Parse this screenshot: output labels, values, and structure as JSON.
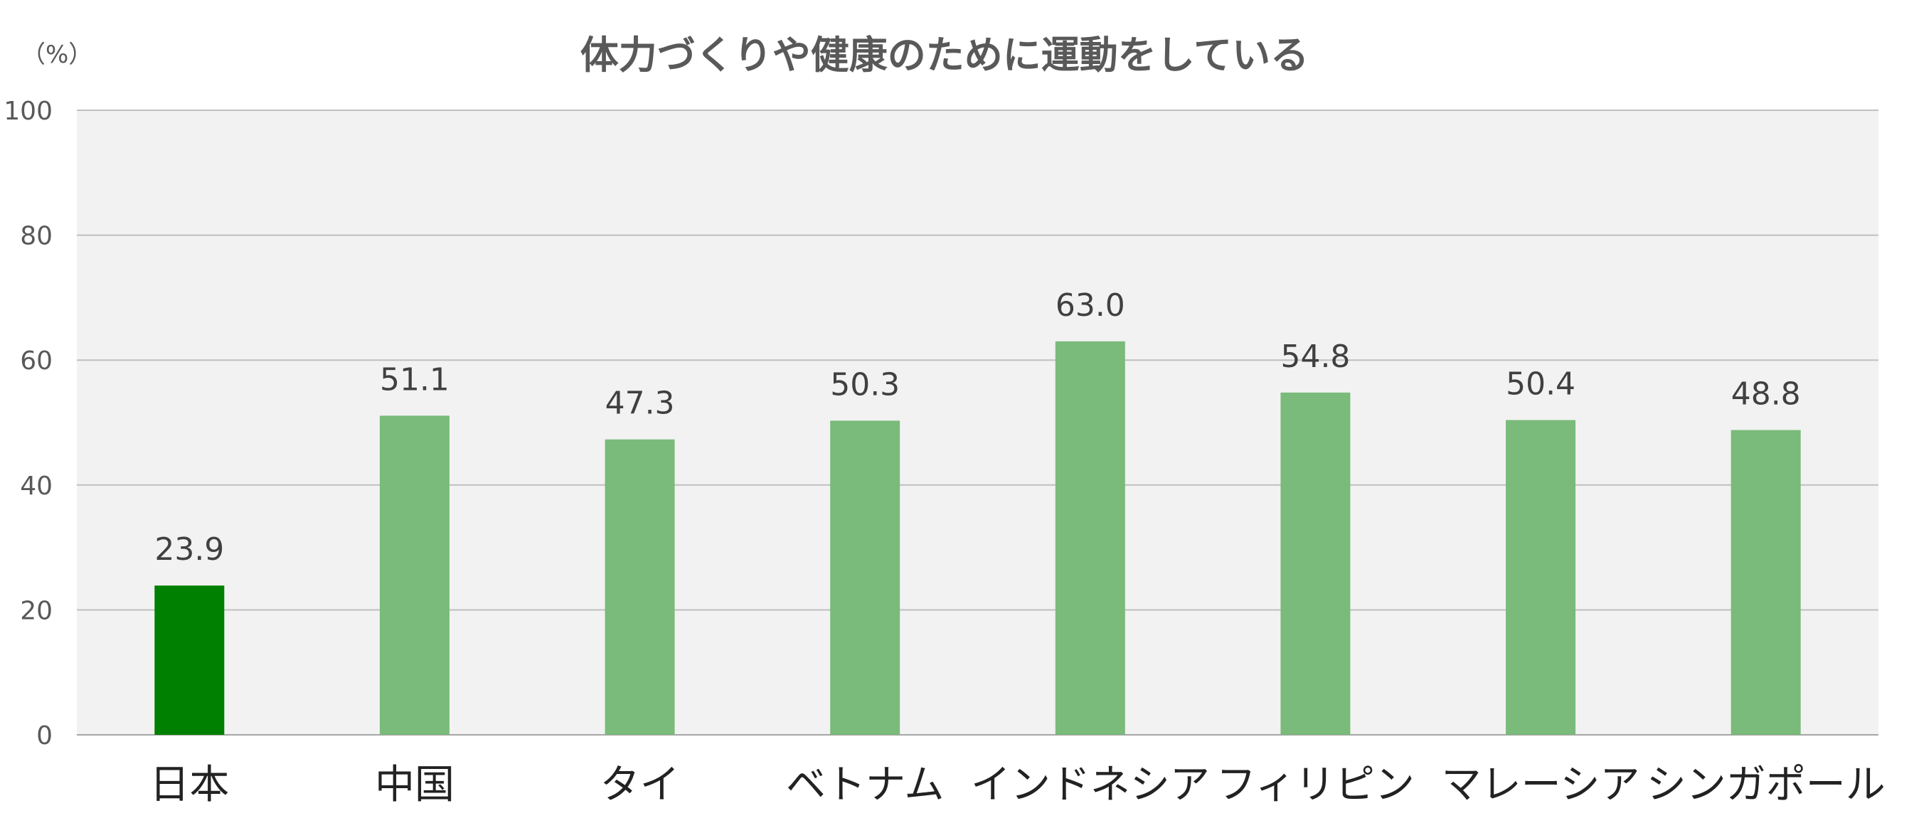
{
  "chart_data": {
    "type": "bar",
    "title": "体力づくりや健康のために運動をしている",
    "unit_label": "（%）",
    "categories": [
      "日本",
      "中国",
      "タイ",
      "ベトナム",
      "インドネシア",
      "フィリピン",
      "マレーシア",
      "シンガポール"
    ],
    "values": [
      23.9,
      51.1,
      47.3,
      50.3,
      63.0,
      54.8,
      50.4,
      48.8
    ],
    "value_labels": [
      "23.9",
      "51.1",
      "47.3",
      "50.3",
      "63.0",
      "54.8",
      "50.4",
      "48.8"
    ],
    "ylim": [
      0,
      100
    ],
    "yticks": [
      0,
      20,
      40,
      60,
      80,
      100
    ],
    "grid": true,
    "colors": {
      "highlight": "#008000",
      "bar": "#7aba7a",
      "plot_background": "#f2f2f2",
      "grid": "#bfbfbf"
    },
    "highlight_index": 0
  }
}
